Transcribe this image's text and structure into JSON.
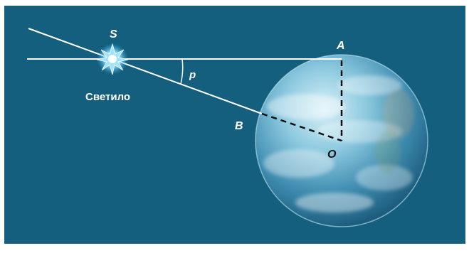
{
  "diagram": {
    "labels": {
      "star": "S",
      "star_caption": "Светило",
      "point_a": "A",
      "point_b": "B",
      "center": "O",
      "angle": "p"
    },
    "colors": {
      "background": "#145f7d",
      "lines": "#ffffff",
      "dashed": "#111111",
      "star_core": "#ffffff",
      "star_glow": "#6fd0ff",
      "earth_light": "#bfe6f3",
      "earth_mid": "#5ba8c8",
      "earth_dark": "#1b5b7c"
    }
  }
}
